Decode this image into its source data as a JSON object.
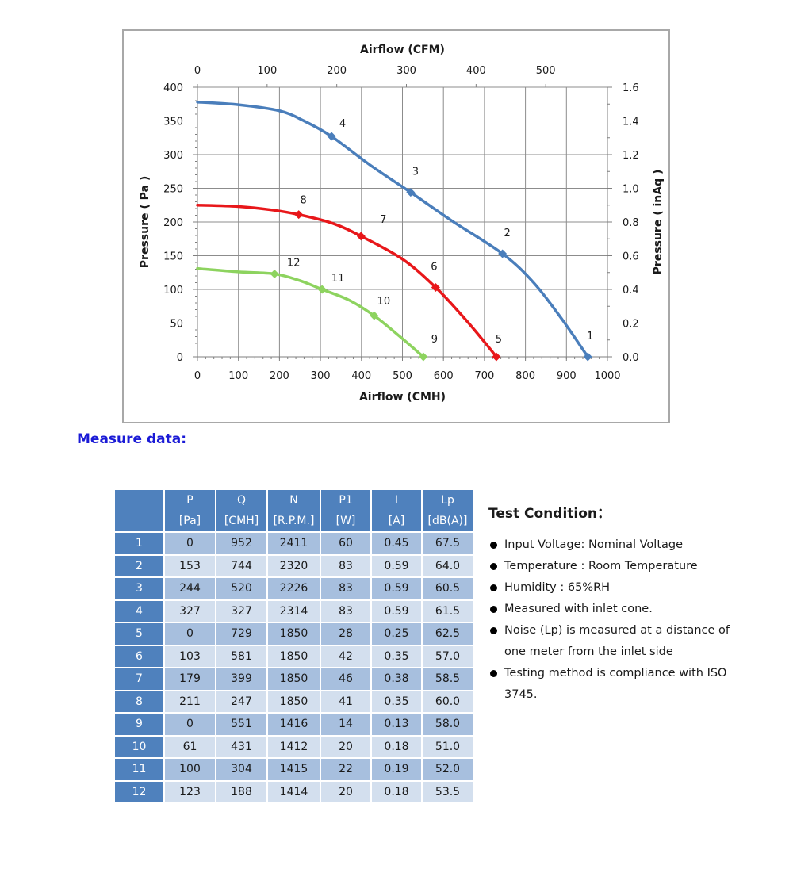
{
  "chart_data": {
    "type": "line",
    "title": "",
    "xlabel": "Airflow (CMH)",
    "x2label": "Airflow (CFM)",
    "ylabel": "Pressure ( Pa )",
    "y2label": "Pressure ( inAq )",
    "xlim": [
      0,
      1000
    ],
    "x2lim": [
      0,
      588.6
    ],
    "ylim": [
      0,
      400
    ],
    "y2lim": [
      0,
      1.6
    ],
    "xticks": [
      0,
      100,
      200,
      300,
      400,
      500,
      600,
      700,
      800,
      900,
      1000
    ],
    "x2ticks": [
      0,
      100,
      200,
      300,
      400,
      500
    ],
    "yticks": [
      0,
      50,
      100,
      150,
      200,
      250,
      300,
      350,
      400
    ],
    "y2ticks": [
      "0.0",
      "0.2",
      "0.4",
      "0.6",
      "0.8",
      "1.0",
      "1.2",
      "1.4",
      "1.6"
    ],
    "grid": true,
    "legend": "none",
    "series": [
      {
        "color": "#4a7ebb",
        "points": [
          {
            "label": "4",
            "x": 327,
            "y": 327
          },
          {
            "label": "3",
            "x": 520,
            "y": 244
          },
          {
            "label": "2",
            "x": 744,
            "y": 153
          },
          {
            "label": "1",
            "x": 952,
            "y": 0
          }
        ],
        "curve": [
          [
            0,
            378
          ],
          [
            100,
            374
          ],
          [
            200,
            365
          ],
          [
            260,
            350
          ],
          [
            327,
            327
          ],
          [
            420,
            285
          ],
          [
            520,
            244
          ],
          [
            620,
            202
          ],
          [
            744,
            153
          ],
          [
            820,
            110
          ],
          [
            890,
            55
          ],
          [
            952,
            0
          ]
        ]
      },
      {
        "color": "#e8171a",
        "points": [
          {
            "label": "8",
            "x": 247,
            "y": 211
          },
          {
            "label": "7",
            "x": 399,
            "y": 179
          },
          {
            "label": "6",
            "x": 581,
            "y": 103
          },
          {
            "label": "5",
            "x": 729,
            "y": 0
          }
        ],
        "curve": [
          [
            0,
            225
          ],
          [
            100,
            223
          ],
          [
            180,
            218
          ],
          [
            247,
            211
          ],
          [
            330,
            198
          ],
          [
            399,
            179
          ],
          [
            500,
            145
          ],
          [
            581,
            103
          ],
          [
            650,
            58
          ],
          [
            700,
            22
          ],
          [
            729,
            0
          ]
        ]
      },
      {
        "color": "#8dd35f",
        "points": [
          {
            "label": "12",
            "x": 188,
            "y": 123
          },
          {
            "label": "11",
            "x": 304,
            "y": 100
          },
          {
            "label": "10",
            "x": 431,
            "y": 61
          },
          {
            "label": "9",
            "x": 551,
            "y": 0
          }
        ],
        "curve": [
          [
            0,
            131
          ],
          [
            100,
            126
          ],
          [
            188,
            123
          ],
          [
            250,
            113
          ],
          [
            304,
            100
          ],
          [
            370,
            84
          ],
          [
            431,
            61
          ],
          [
            490,
            32
          ],
          [
            551,
            0
          ]
        ]
      }
    ]
  },
  "measure_title": "Measure data:",
  "table": {
    "headers": [
      {
        "name": "P",
        "unit": "[Pa]"
      },
      {
        "name": "Q",
        "unit": "[CMH]"
      },
      {
        "name": "N",
        "unit": "[R.P.M.]"
      },
      {
        "name": "P1",
        "unit": "[W]"
      },
      {
        "name": "I",
        "unit": "[A]"
      },
      {
        "name": "Lp",
        "unit": "[dB(A)]"
      }
    ],
    "rows": [
      [
        "1",
        "0",
        "952",
        "2411",
        "60",
        "0.45",
        "67.5"
      ],
      [
        "2",
        "153",
        "744",
        "2320",
        "83",
        "0.59",
        "64.0"
      ],
      [
        "3",
        "244",
        "520",
        "2226",
        "83",
        "0.59",
        "60.5"
      ],
      [
        "4",
        "327",
        "327",
        "2314",
        "83",
        "0.59",
        "61.5"
      ],
      [
        "5",
        "0",
        "729",
        "1850",
        "28",
        "0.25",
        "62.5"
      ],
      [
        "6",
        "103",
        "581",
        "1850",
        "42",
        "0.35",
        "57.0"
      ],
      [
        "7",
        "179",
        "399",
        "1850",
        "46",
        "0.38",
        "58.5"
      ],
      [
        "8",
        "211",
        "247",
        "1850",
        "41",
        "0.35",
        "60.0"
      ],
      [
        "9",
        "0",
        "551",
        "1416",
        "14",
        "0.13",
        "58.0"
      ],
      [
        "10",
        "61",
        "431",
        "1412",
        "20",
        "0.18",
        "51.0"
      ],
      [
        "11",
        "100",
        "304",
        "1415",
        "22",
        "0.19",
        "52.0"
      ],
      [
        "12",
        "123",
        "188",
        "1414",
        "20",
        "0.18",
        "53.5"
      ]
    ]
  },
  "test_condition": {
    "title": "Test Condition：",
    "items": [
      "Input Voltage: Nominal Voltage",
      "Temperature : Room Temperature",
      "Humidity : 65%RH",
      "Measured with inlet cone.",
      "Noise (Lp) is measured at a distance of one meter from the inlet side",
      "Testing method is compliance with ISO 3745."
    ]
  }
}
